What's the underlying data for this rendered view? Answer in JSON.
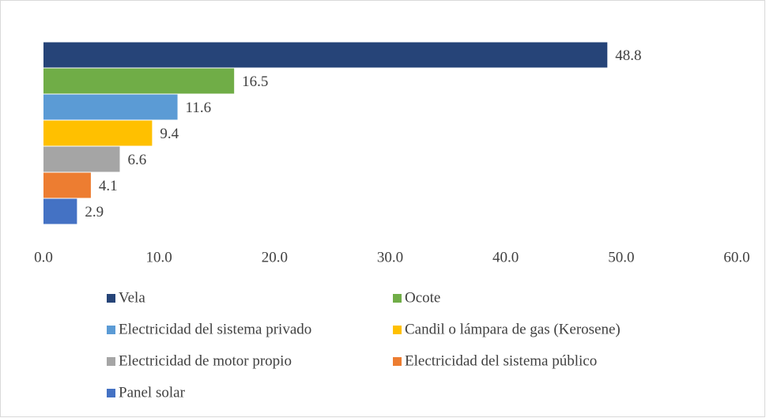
{
  "chart_data": {
    "type": "bar",
    "orientation": "horizontal",
    "series": [
      {
        "name": "Vela",
        "color": "#264478",
        "values": [
          48.8
        ]
      },
      {
        "name": "Ocote",
        "color": "#70ad47",
        "values": [
          16.5
        ]
      },
      {
        "name": "Electricidad del sistema privado",
        "color": "#5b9bd5",
        "values": [
          11.6
        ]
      },
      {
        "name": "Candil o lámpara de gas (Kerosene)",
        "color": "#ffc000",
        "values": [
          9.4
        ]
      },
      {
        "name": "Electricidad de motor propio",
        "color": "#a5a5a5",
        "values": [
          6.6
        ]
      },
      {
        "name": "Electricidad del sistema público",
        "color": "#ed7d31",
        "values": [
          4.1
        ]
      },
      {
        "name": "Panel solar",
        "color": "#4472c4",
        "values": [
          2.9
        ]
      }
    ],
    "xlim": [
      0,
      60
    ],
    "xticks": [
      {
        "value": 0,
        "label": "0.0"
      },
      {
        "value": 10,
        "label": "10.0"
      },
      {
        "value": 20,
        "label": "20.0"
      },
      {
        "value": 30,
        "label": "30.0"
      },
      {
        "value": 40,
        "label": "40.0"
      },
      {
        "value": 50,
        "label": "50.0"
      },
      {
        "value": 60,
        "label": "60.0"
      }
    ],
    "grid": false,
    "legend": "bottom"
  }
}
